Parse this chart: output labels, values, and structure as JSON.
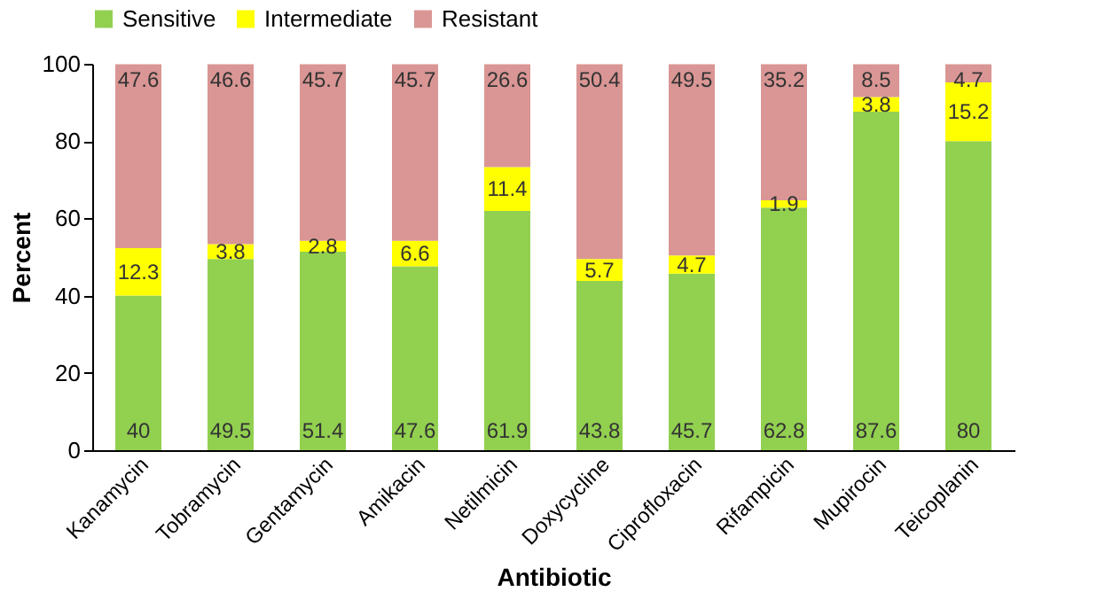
{
  "chart_data": {
    "type": "bar",
    "stacked": true,
    "xlabel": "Antibiotic",
    "ylabel": "Percent",
    "categories": [
      "Kanamycin",
      "Tobramycin",
      "Gentamycin",
      "Amikacin",
      "Netilmicin",
      "Doxycycline",
      "Ciprofloxacin",
      "Rifampicin",
      "Mupirocin",
      "Teicoplanin"
    ],
    "series": [
      {
        "name": "Sensitive",
        "color": "#92d050",
        "values": [
          40,
          49.5,
          51.4,
          47.6,
          61.9,
          43.8,
          45.7,
          62.8,
          87.6,
          80
        ]
      },
      {
        "name": "Intermediate",
        "color": "#ffff00",
        "values": [
          12.3,
          3.8,
          2.8,
          6.6,
          11.4,
          5.7,
          4.7,
          1.9,
          3.8,
          15.2
        ]
      },
      {
        "name": "Resistant",
        "color": "#d99694",
        "values": [
          47.6,
          46.6,
          45.7,
          45.7,
          26.6,
          50.4,
          49.5,
          35.2,
          8.5,
          4.7
        ]
      }
    ],
    "ylim": [
      0,
      100
    ],
    "yticks": [
      0,
      20,
      40,
      60,
      80,
      100
    ],
    "grid": false,
    "legend": "top",
    "data_labels": true
  }
}
